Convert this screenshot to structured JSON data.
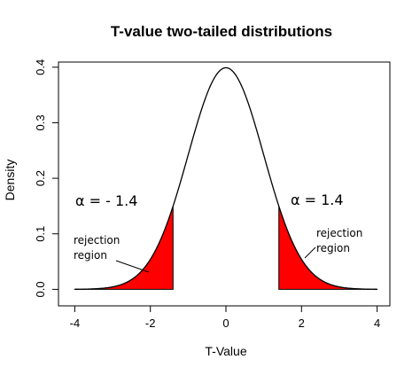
{
  "chart_data": {
    "type": "area",
    "title": "T-value two-tailed distributions",
    "xlabel": "T-Value",
    "ylabel": "Density",
    "xlim": [
      -4,
      4
    ],
    "ylim": [
      0,
      0.4
    ],
    "x_ticks": [
      -4,
      -2,
      0,
      2,
      4
    ],
    "x_tick_labels": [
      "-4",
      "-2",
      "0",
      "2",
      "4"
    ],
    "y_ticks": [
      0.0,
      0.1,
      0.2,
      0.3,
      0.4
    ],
    "y_tick_labels": [
      "0.0",
      "0.1",
      "0.2",
      "0.3",
      "0.4"
    ],
    "grid": false,
    "distribution": "normal",
    "curve_color": "#000000",
    "shaded_regions": [
      {
        "from": -4,
        "to": -1.4,
        "color": "#ff0000"
      },
      {
        "from": 1.4,
        "to": 4,
        "color": "#ff0000"
      }
    ],
    "annotations": {
      "left_alpha": "α = - 1.4",
      "right_alpha": "α = 1.4",
      "left_region": [
        "rejection",
        "region"
      ],
      "right_region": [
        "rejection",
        "region"
      ]
    }
  }
}
